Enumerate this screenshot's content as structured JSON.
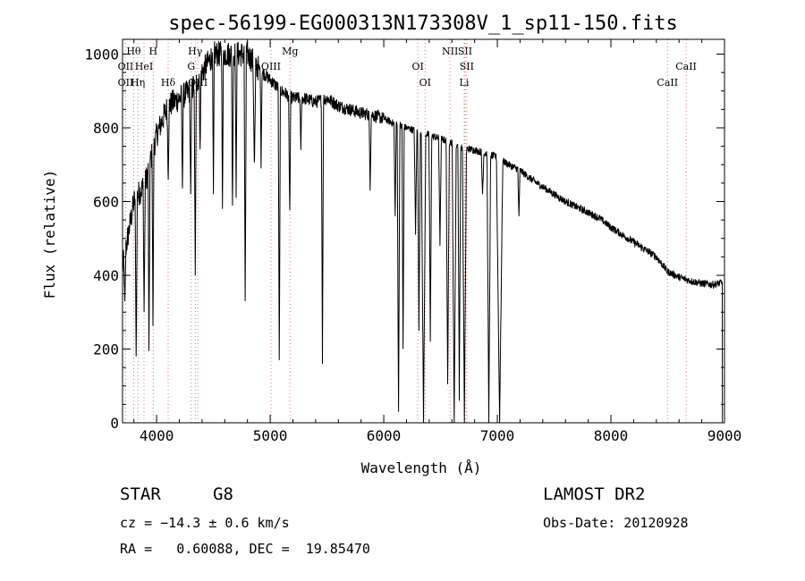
{
  "chart_data": {
    "type": "line",
    "title": "spec-56199-EG000313N173308V_1_sp11-150.fits",
    "xlabel": "Wavelength (Å)",
    "ylabel": "Flux (relative)",
    "xlim": [
      3700,
      9000
    ],
    "ylim": [
      0,
      1040
    ],
    "xticks": [
      4000,
      5000,
      6000,
      7000,
      8000,
      9000
    ],
    "yticks": [
      0,
      200,
      400,
      600,
      800,
      1000
    ],
    "continuum": [
      [
        3700,
        420
      ],
      [
        3800,
        600
      ],
      [
        3900,
        650
      ],
      [
        4000,
        780
      ],
      [
        4100,
        860
      ],
      [
        4200,
        880
      ],
      [
        4300,
        900
      ],
      [
        4400,
        950
      ],
      [
        4500,
        1000
      ],
      [
        4600,
        1000
      ],
      [
        4700,
        1000
      ],
      [
        4800,
        1000
      ],
      [
        4900,
        960
      ],
      [
        5000,
        930
      ],
      [
        5100,
        900
      ],
      [
        5200,
        880
      ],
      [
        5300,
        880
      ],
      [
        5400,
        870
      ],
      [
        5500,
        880
      ],
      [
        5600,
        860
      ],
      [
        5700,
        850
      ],
      [
        5800,
        840
      ],
      [
        5900,
        835
      ],
      [
        6000,
        825
      ],
      [
        6100,
        810
      ],
      [
        6200,
        800
      ],
      [
        6300,
        790
      ],
      [
        6400,
        780
      ],
      [
        6500,
        770
      ],
      [
        6600,
        760
      ],
      [
        6700,
        745
      ],
      [
        6800,
        740
      ],
      [
        6900,
        730
      ],
      [
        7000,
        720
      ],
      [
        7100,
        700
      ],
      [
        7200,
        685
      ],
      [
        7300,
        660
      ],
      [
        7400,
        640
      ],
      [
        7500,
        620
      ],
      [
        7600,
        600
      ],
      [
        7700,
        585
      ],
      [
        7800,
        570
      ],
      [
        7900,
        555
      ],
      [
        8000,
        530
      ],
      [
        8100,
        510
      ],
      [
        8200,
        490
      ],
      [
        8300,
        470
      ],
      [
        8400,
        450
      ],
      [
        8500,
        410
      ],
      [
        8600,
        395
      ],
      [
        8700,
        385
      ],
      [
        8800,
        378
      ],
      [
        8900,
        375
      ],
      [
        8980,
        380
      ],
      [
        9000,
        0
      ]
    ],
    "absorption": [
      [
        3720,
        330,
        10
      ],
      [
        3820,
        180,
        10
      ],
      [
        3890,
        300,
        10
      ],
      [
        3933,
        160,
        8
      ],
      [
        3968,
        230,
        8
      ],
      [
        4102,
        650,
        10
      ],
      [
        4227,
        620,
        8
      ],
      [
        4300,
        620,
        10
      ],
      [
        4340,
        400,
        10
      ],
      [
        4383,
        730,
        8
      ],
      [
        4500,
        620,
        8
      ],
      [
        4580,
        580,
        8
      ],
      [
        4668,
        560,
        8
      ],
      [
        4700,
        610,
        8
      ],
      [
        4780,
        330,
        10
      ],
      [
        4861,
        680,
        12
      ],
      [
        4920,
        690,
        8
      ],
      [
        5080,
        170,
        10
      ],
      [
        5172,
        560,
        10
      ],
      [
        5270,
        740,
        8
      ],
      [
        5460,
        160,
        10
      ],
      [
        5880,
        630,
        10
      ],
      [
        6100,
        560,
        10
      ],
      [
        6130,
        30,
        12
      ],
      [
        6170,
        200,
        10
      ],
      [
        6280,
        510,
        12
      ],
      [
        6310,
        250,
        12
      ],
      [
        6350,
        0,
        20
      ],
      [
        6410,
        220,
        12
      ],
      [
        6495,
        480,
        12
      ],
      [
        6563,
        80,
        14
      ],
      [
        6620,
        0,
        18
      ],
      [
        6665,
        60,
        12
      ],
      [
        6710,
        0,
        18
      ],
      [
        6870,
        620,
        12
      ],
      [
        6925,
        0,
        16
      ],
      [
        7020,
        0,
        28
      ],
      [
        7190,
        560,
        10
      ]
    ],
    "noise_amplitude": 45,
    "annotations": [
      {
        "label": "Hθ",
        "x": 3798,
        "row": 1
      },
      {
        "label": "H",
        "x": 3970,
        "row": 1
      },
      {
        "label": "Hγ",
        "x": 4340,
        "row": 1
      },
      {
        "label": "Mg",
        "x": 5175,
        "row": 1
      },
      {
        "label": "NII",
        "x": 6584,
        "row": 1
      },
      {
        "label": "SII",
        "x": 6716,
        "row": 1
      },
      {
        "label": "OII",
        "x": 3727,
        "row": 2
      },
      {
        "label": "HeI",
        "x": 3889,
        "row": 2
      },
      {
        "label": "G",
        "x": 4305,
        "row": 2
      },
      {
        "label": "OIII",
        "x": 5007,
        "row": 2
      },
      {
        "label": "OI",
        "x": 6300,
        "row": 2
      },
      {
        "label": "SII",
        "x": 6731,
        "row": 2
      },
      {
        "label": "CaII",
        "x": 8662,
        "row": 2
      },
      {
        "label": "OII",
        "x": 3727,
        "row": 3
      },
      {
        "label": "Hη",
        "x": 3835,
        "row": 3
      },
      {
        "label": "Hδ",
        "x": 4102,
        "row": 3
      },
      {
        "label": "OIII",
        "x": 4363,
        "row": 3
      },
      {
        "label": "OI",
        "x": 6364,
        "row": 3
      },
      {
        "label": "Li",
        "x": 6708,
        "row": 3
      },
      {
        "label": "CaII",
        "x": 8498,
        "row": 3
      }
    ],
    "grid": false,
    "legend": "none"
  },
  "info": {
    "object_class": "STAR",
    "subclass": "G8",
    "survey": "LAMOST DR2",
    "redshift": "cz = −14.3 ± 0.6 km/s",
    "obs_date": "Obs-Date: 20120928",
    "coords": "RA =   0.60088, DEC =  19.85470"
  }
}
